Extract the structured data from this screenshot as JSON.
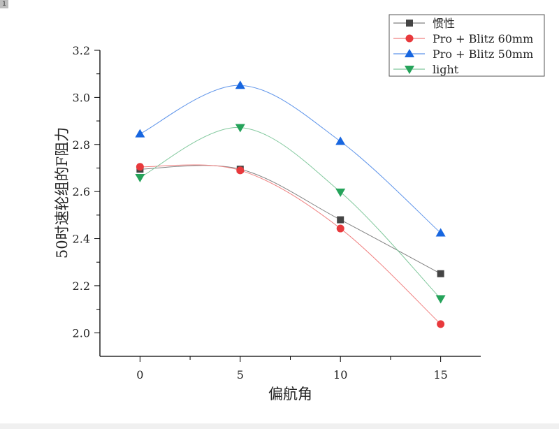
{
  "page_badge": "1",
  "chart_data": {
    "type": "line",
    "xlabel": "偏航角",
    "ylabel": "50时速轮组的F阻力",
    "x": [
      0,
      5,
      10,
      15
    ],
    "xlim": [
      -2,
      17
    ],
    "ylim": [
      1.9,
      3.2
    ],
    "xticks": [
      "0",
      "5",
      "10",
      "15"
    ],
    "yticks": [
      "2.0",
      "2.2",
      "2.4",
      "2.6",
      "2.8",
      "3.0",
      "3.2"
    ],
    "grid": false,
    "legend_position": "top-right",
    "smooth": true,
    "series": [
      {
        "name": "惯性",
        "values": [
          2.695,
          2.695,
          2.48,
          2.251
        ],
        "color": "#444444",
        "line_color": "#808080",
        "marker": "square"
      },
      {
        "name": "Pro + Blitz 60mm",
        "values": [
          2.705,
          2.69,
          2.443,
          2.037
        ],
        "color": "#e8393c",
        "line_color": "#f08080",
        "marker": "circle"
      },
      {
        "name": "Pro + Blitz 50mm",
        "values": [
          2.845,
          3.051,
          2.813,
          2.424
        ],
        "color": "#1766e0",
        "line_color": "#5e94ea",
        "marker": "triangle-up"
      },
      {
        "name": "light",
        "values": [
          2.66,
          2.872,
          2.598,
          2.145
        ],
        "color": "#25a35a",
        "line_color": "#80c89c",
        "marker": "triangle-down"
      }
    ]
  }
}
